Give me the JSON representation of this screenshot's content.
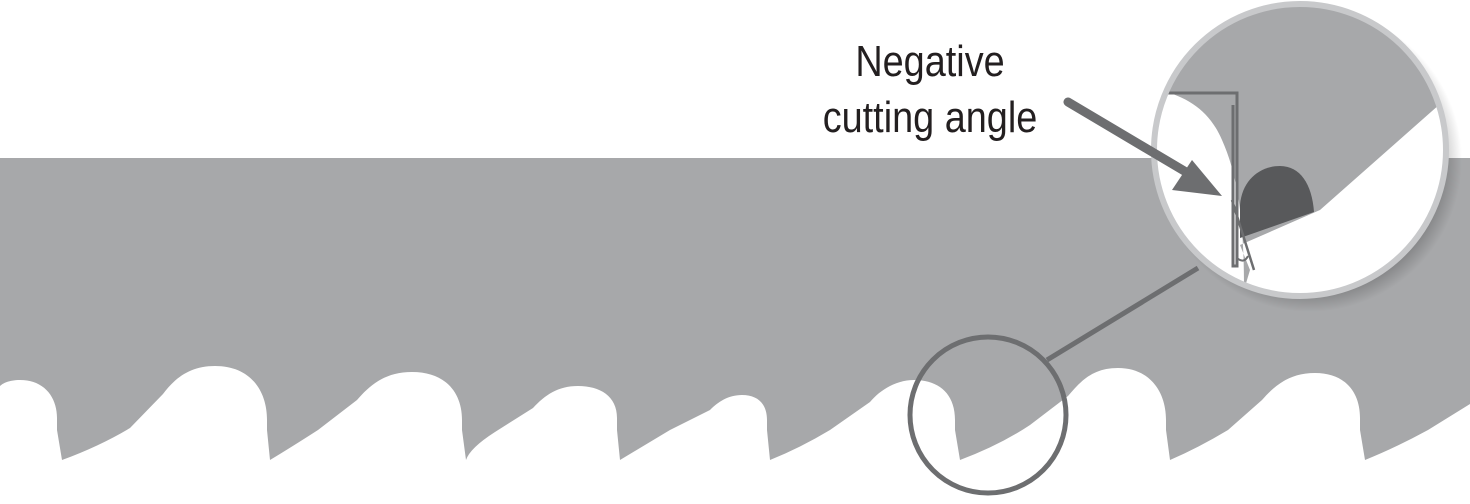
{
  "callout": {
    "line1": "Negative",
    "line2": "cutting angle"
  },
  "colors": {
    "blade": "#a7a8aa",
    "blade_dark": "#6d6e70",
    "carbide_tip": "#58595b",
    "outline": "#6d6e70",
    "text": "#231f20",
    "background": "#ffffff"
  },
  "icons": {
    "arrow": "arrow-pointer-icon",
    "angle": "angle-mark-icon"
  },
  "teeth": {
    "count": 7
  }
}
